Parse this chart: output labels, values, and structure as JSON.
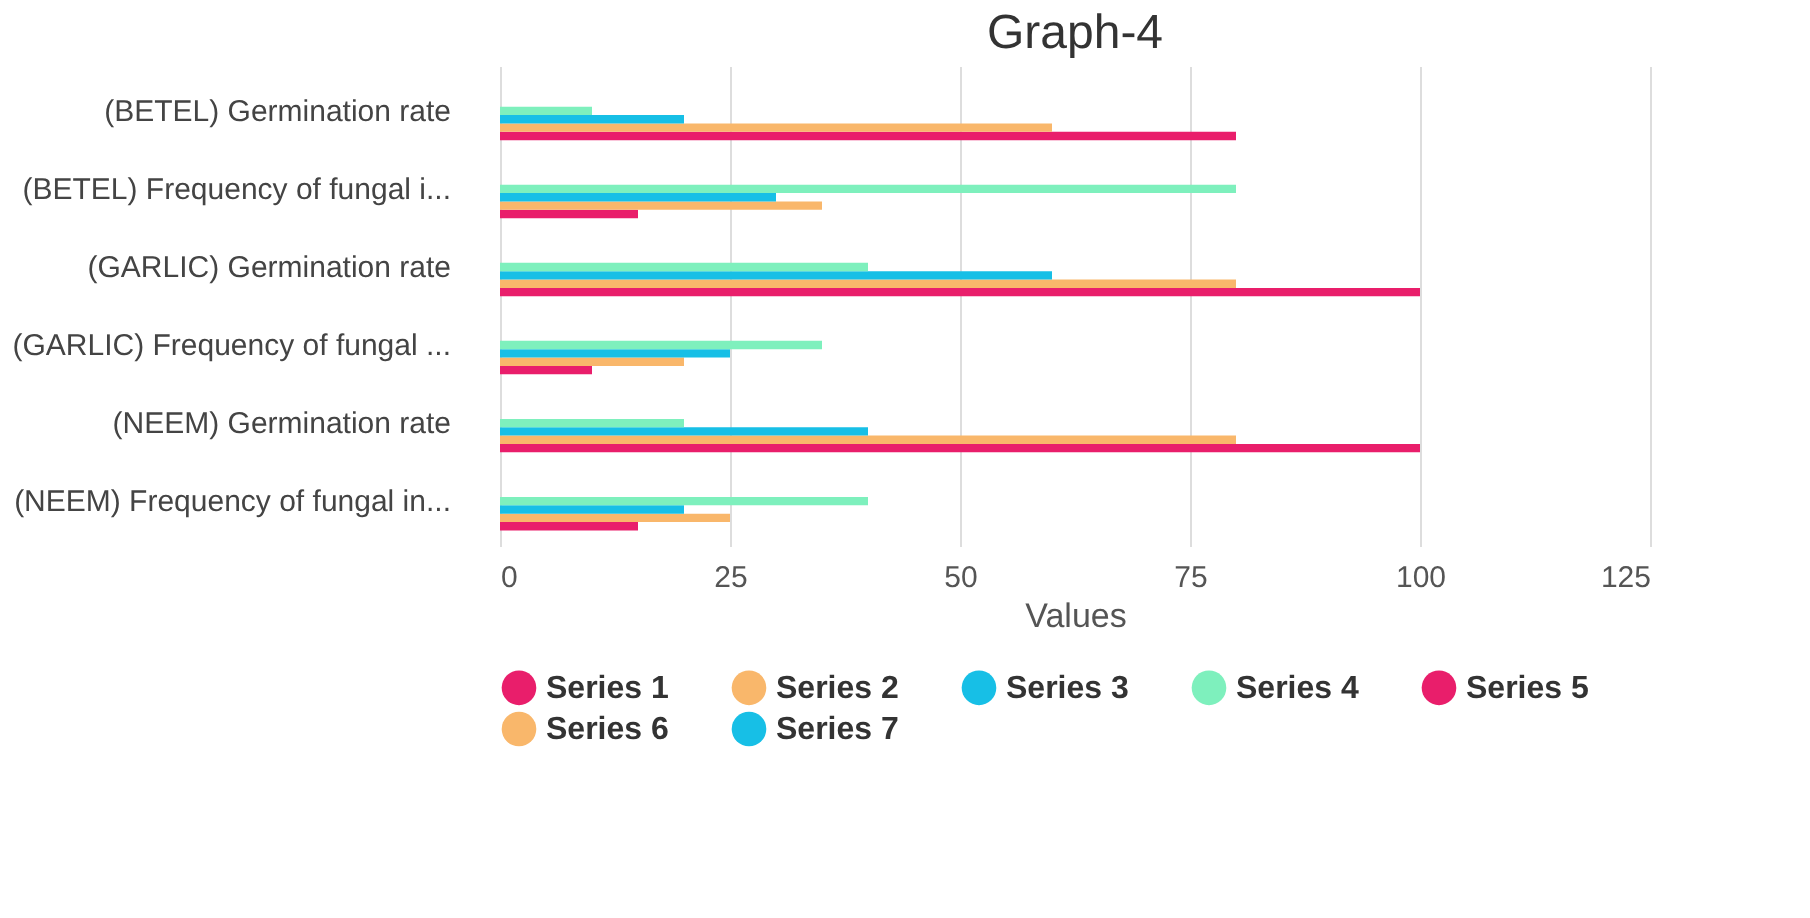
{
  "chart_data": {
    "type": "bar",
    "orientation": "horizontal",
    "title": "Graph-4",
    "xlabel": "Values",
    "categories": [
      "(BETEL) Germination rate",
      "(BETEL) Frequency of fungal i...",
      "(GARLIC) Germination rate",
      "(GARLIC) Frequency of fungal ...",
      "(NEEM) Germination rate",
      "(NEEM) Frequency of fungal in..."
    ],
    "series": [
      {
        "name": "Series 1",
        "color": "#e91e6b",
        "values": [
          80,
          15,
          100,
          10,
          100,
          15
        ]
      },
      {
        "name": "Series 2",
        "color": "#f9b76b",
        "values": [
          60,
          35,
          80,
          20,
          80,
          25
        ]
      },
      {
        "name": "Series 3",
        "color": "#17bfe6",
        "values": [
          20,
          30,
          60,
          25,
          40,
          20
        ]
      },
      {
        "name": "Series 4",
        "color": "#7ef0bd",
        "values": [
          10,
          80,
          40,
          35,
          20,
          40
        ]
      },
      {
        "name": "Series 5",
        "color": "#e91e6b",
        "values": [
          null,
          null,
          null,
          null,
          null,
          null
        ]
      },
      {
        "name": "Series 6",
        "color": "#f9b76b",
        "values": [
          null,
          null,
          null,
          null,
          null,
          null
        ]
      },
      {
        "name": "Series 7",
        "color": "#17bfe6",
        "values": [
          null,
          null,
          null,
          null,
          null,
          null
        ]
      }
    ],
    "xlim": [
      0,
      125
    ],
    "xticks": [
      0,
      25,
      50,
      75,
      100,
      125
    ],
    "grid": "x",
    "legend": "bottom"
  }
}
